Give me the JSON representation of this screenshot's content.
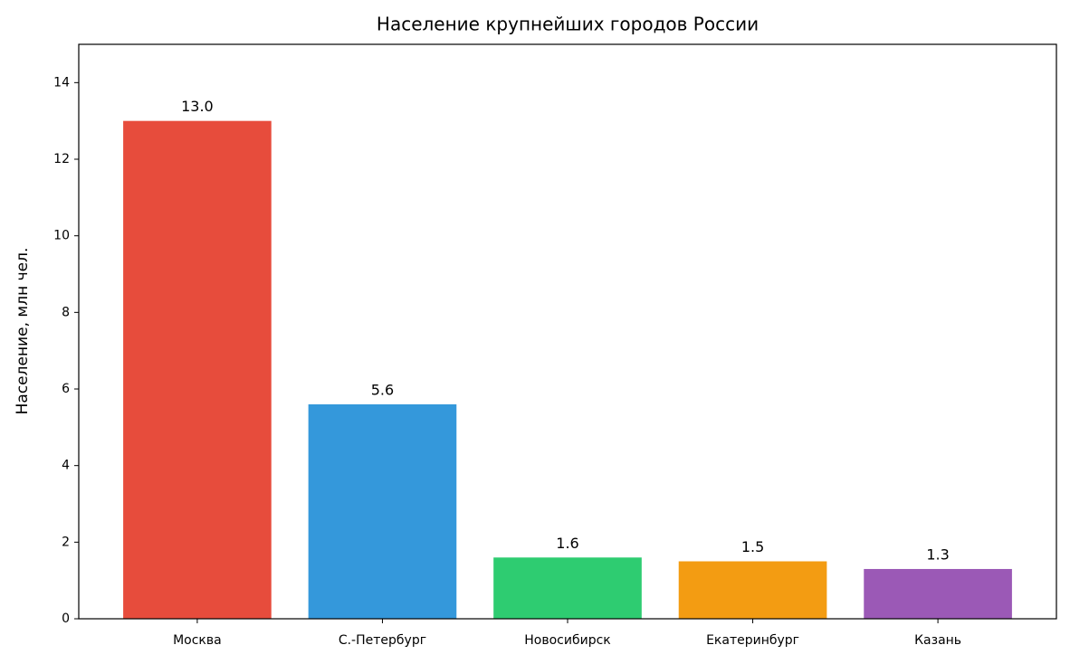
{
  "chart_data": {
    "type": "bar",
    "title": "Население крупнейших городов России",
    "ylabel": "Население, млн чел.",
    "categories": [
      "Москва",
      "С.-Петербург",
      "Новосибирск",
      "Екатеринбург",
      "Казань"
    ],
    "values": [
      13.0,
      5.6,
      1.6,
      1.5,
      1.3
    ],
    "value_labels": [
      "13.0",
      "5.6",
      "1.6",
      "1.5",
      "1.3"
    ],
    "colors": [
      "#e74c3c",
      "#3498db",
      "#2ecc71",
      "#f39c12",
      "#9b59b6"
    ],
    "ylim": [
      0,
      15
    ],
    "yticks": [
      0,
      2,
      4,
      6,
      8,
      10,
      12,
      14
    ],
    "grid": false
  }
}
